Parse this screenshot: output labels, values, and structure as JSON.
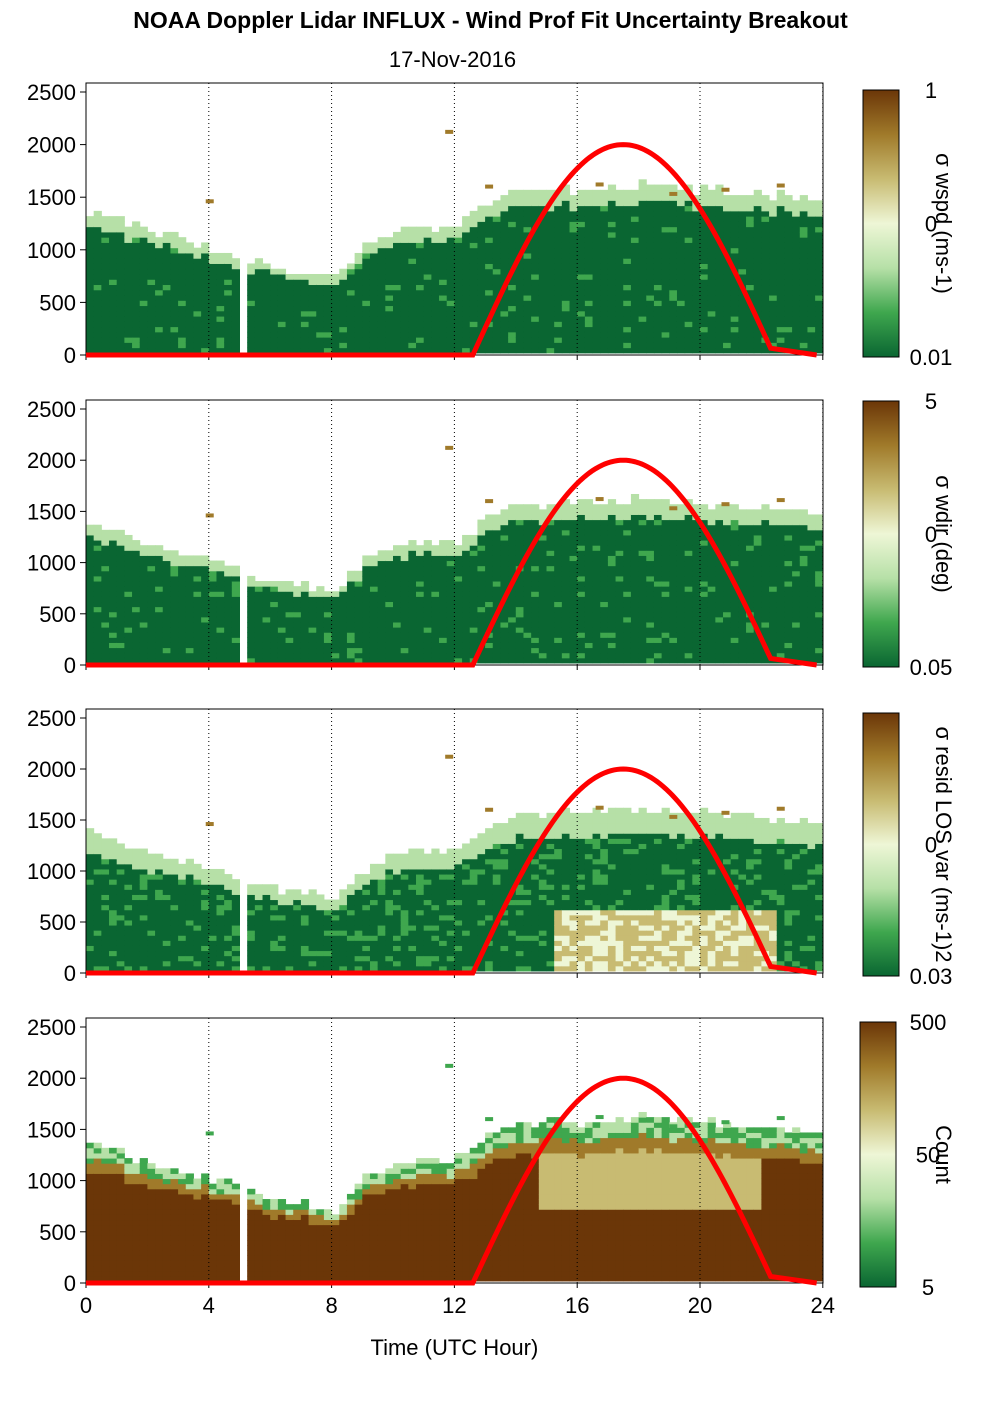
{
  "figure": {
    "title": "NOAA Doppler Lidar INFLUX - Wind Prof Fit Uncertainty Breakout",
    "subtitle": "17-Nov-2016"
  },
  "colors": {
    "dark_green": "#0a6632",
    "mid_green": "#3fa74e",
    "light_green": "#b6e0a7",
    "pale": "#eef6d6",
    "khaki": "#c8bb72",
    "tan": "#a07a2a",
    "dark_brown": "#6b3608",
    "sun_curve": "#ff0000"
  },
  "chart_data": [
    {
      "type": "heatmap",
      "panel": "wspd",
      "xlabel": "",
      "xlim": [
        0,
        24
      ],
      "ylim": [
        0,
        2500
      ],
      "y_ticks": [
        "0",
        "500",
        "1000",
        "1500",
        "2000",
        "2500"
      ],
      "colorbar": {
        "label": "σ wspd (ms-1)",
        "ticks": [
          "1",
          "0",
          "0.01"
        ],
        "scale": "log"
      },
      "cloud_top_profile": {
        "x": [
          0,
          1,
          2,
          4,
          5,
          6,
          8,
          9,
          10,
          12,
          13,
          14,
          16,
          18,
          20,
          22,
          23.8
        ],
        "y": [
          1350,
          1250,
          1150,
          1000,
          900,
          800,
          700,
          1000,
          1150,
          1200,
          1400,
          1550,
          1550,
          1600,
          1550,
          1500,
          1450
        ]
      },
      "sun_curve": {
        "x": [
          12.6,
          14,
          16,
          17.5,
          19,
          21,
          22.4
        ],
        "y": [
          0,
          1150,
          1850,
          2000,
          1850,
          1150,
          0
        ]
      }
    },
    {
      "type": "heatmap",
      "panel": "wdir",
      "xlabel": "",
      "xlim": [
        0,
        24
      ],
      "ylim": [
        0,
        2500
      ],
      "y_ticks": [
        "0",
        "500",
        "1000",
        "1500",
        "2000",
        "2500"
      ],
      "colorbar": {
        "label": "σ wdir (deg)",
        "ticks": [
          "5",
          "0",
          "0.05"
        ],
        "scale": "log"
      },
      "cloud_top_profile": {
        "x": [
          0,
          1,
          2,
          4,
          5,
          6,
          8,
          9,
          10,
          12,
          13,
          14,
          16,
          18,
          20,
          22,
          23.8
        ],
        "y": [
          1350,
          1250,
          1150,
          1000,
          900,
          800,
          700,
          1000,
          1150,
          1200,
          1400,
          1550,
          1550,
          1600,
          1550,
          1500,
          1450
        ]
      },
      "sun_curve": {
        "x": [
          12.6,
          14,
          16,
          17.5,
          19,
          21,
          22.4
        ],
        "y": [
          0,
          1150,
          1850,
          2000,
          1850,
          1150,
          0
        ]
      }
    },
    {
      "type": "heatmap",
      "panel": "resid",
      "xlabel": "",
      "xlim": [
        0,
        24
      ],
      "ylim": [
        0,
        2500
      ],
      "y_ticks": [
        "0",
        "500",
        "1000",
        "1500",
        "2000",
        "2500"
      ],
      "colorbar": {
        "label": "σ resid LOS var (ms-1)2",
        "ticks": [
          "0",
          "0.03"
        ],
        "scale": "log"
      },
      "cloud_top_profile": {
        "x": [
          0,
          1,
          2,
          4,
          5,
          6,
          8,
          9,
          10,
          12,
          13,
          14,
          16,
          18,
          20,
          22,
          23.8
        ],
        "y": [
          1350,
          1250,
          1150,
          1000,
          900,
          800,
          700,
          1000,
          1150,
          1200,
          1400,
          1550,
          1550,
          1600,
          1550,
          1500,
          1450
        ]
      },
      "sun_curve": {
        "x": [
          12.6,
          14,
          16,
          17.5,
          19,
          21,
          22.4
        ],
        "y": [
          0,
          1150,
          1850,
          2000,
          1850,
          1150,
          0
        ]
      }
    },
    {
      "type": "heatmap",
      "panel": "count",
      "xlabel": "Time (UTC Hour)",
      "xlim": [
        0,
        24
      ],
      "x_ticks": [
        "0",
        "4",
        "8",
        "12",
        "16",
        "20",
        "24"
      ],
      "ylim": [
        0,
        2500
      ],
      "y_ticks": [
        "0",
        "500",
        "1000",
        "1500",
        "2000",
        "2500"
      ],
      "colorbar": {
        "label": "Count",
        "ticks": [
          "500",
          "50",
          "5"
        ],
        "scale": "log"
      },
      "cloud_top_profile": {
        "x": [
          0,
          1,
          2,
          4,
          5,
          6,
          8,
          9,
          10,
          12,
          13,
          14,
          16,
          18,
          20,
          22,
          23.8
        ],
        "y": [
          1350,
          1250,
          1150,
          1000,
          900,
          800,
          700,
          1000,
          1150,
          1200,
          1400,
          1550,
          1550,
          1600,
          1550,
          1500,
          1450
        ]
      },
      "sun_curve": {
        "x": [
          12.6,
          14,
          16,
          17.5,
          19,
          21,
          22.4
        ],
        "y": [
          0,
          1150,
          1850,
          2000,
          1850,
          1150,
          0
        ]
      }
    }
  ]
}
